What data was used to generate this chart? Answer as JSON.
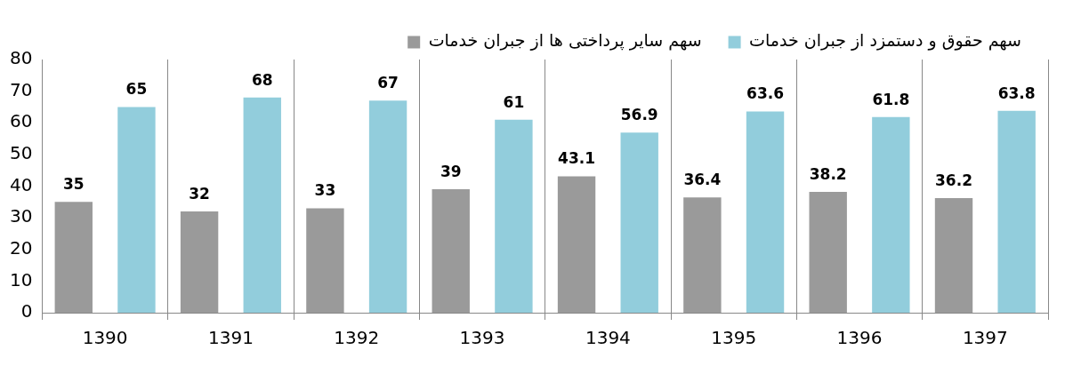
{
  "chart_data": {
    "type": "bar",
    "categories": [
      "1390",
      "1391",
      "1392",
      "1393",
      "1394",
      "1395",
      "1396",
      "1397"
    ],
    "series": [
      {
        "name": "سهم سایر پرداختی ها از جبران خدمات",
        "color": "#9a9a9a",
        "values": [
          35,
          32,
          33,
          39,
          43.1,
          36.4,
          38.2,
          36.2
        ]
      },
      {
        "name": "سهم حقوق و دستمزد از جبران خدمات",
        "color": "#92cddc",
        "values": [
          65,
          68,
          67,
          61,
          56.9,
          63.6,
          61.8,
          63.8
        ]
      }
    ],
    "ylim": [
      0,
      80
    ],
    "yticks": [
      0,
      10,
      20,
      30,
      40,
      50,
      60,
      70,
      80
    ],
    "grid": "x",
    "legend": "top",
    "data_labels": true
  }
}
